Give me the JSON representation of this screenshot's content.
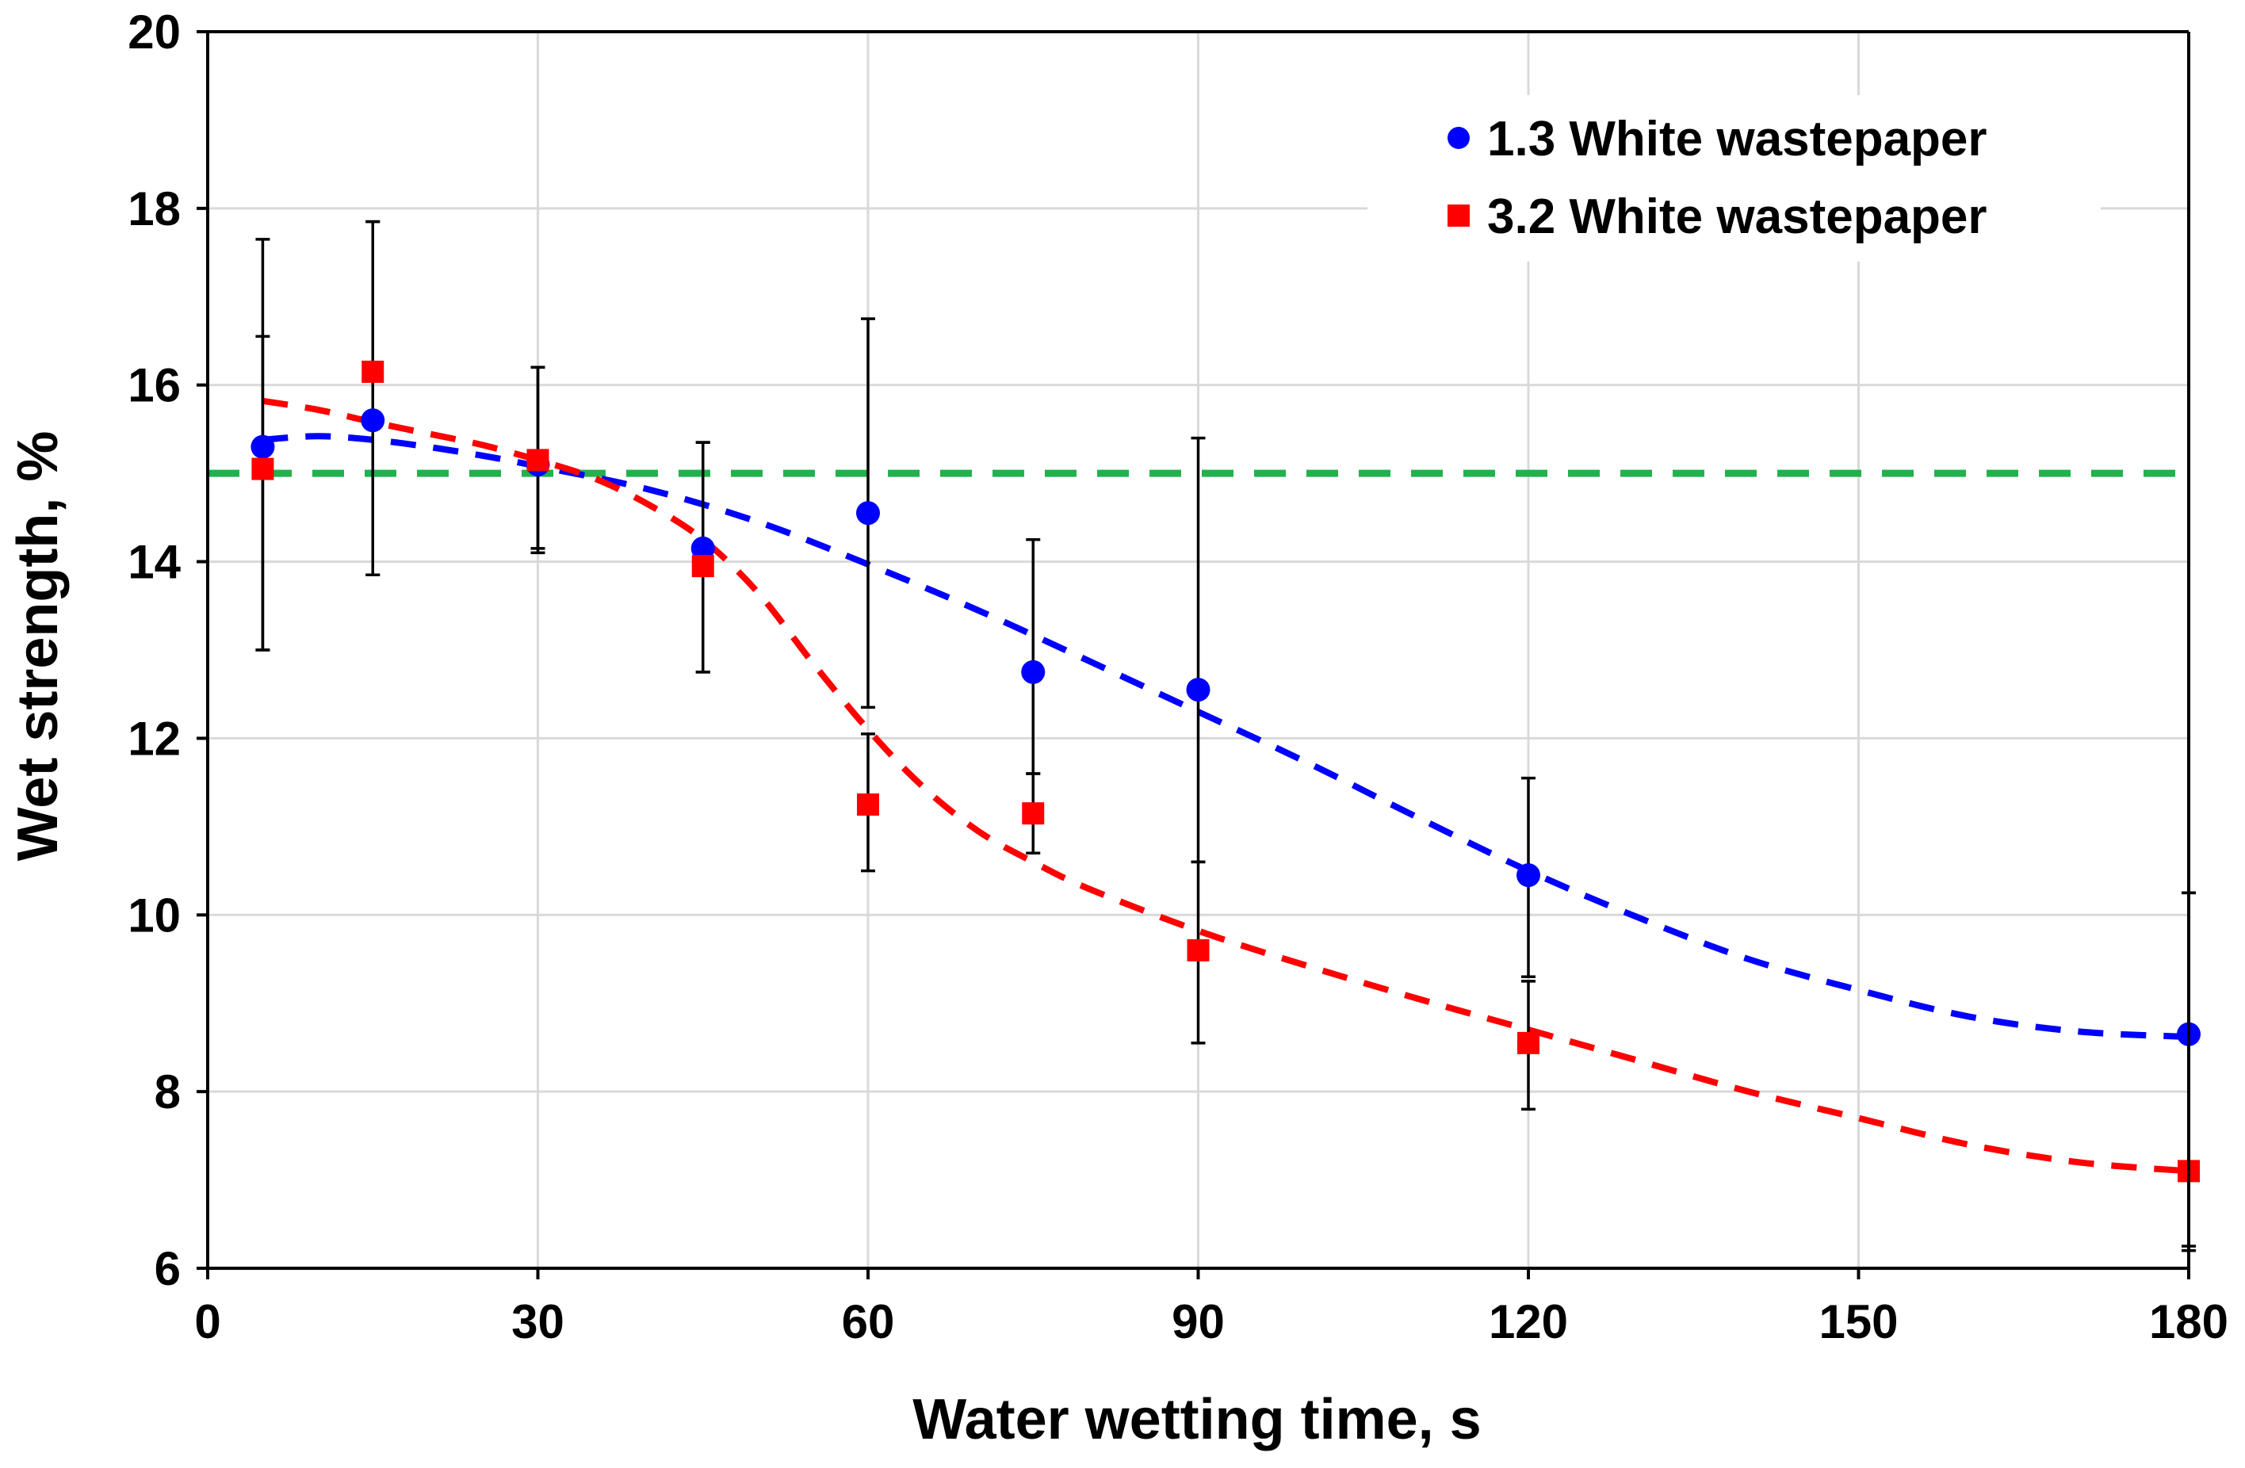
{
  "chart_data": {
    "type": "scatter",
    "title": "",
    "xlabel": "Water wetting time, s",
    "ylabel": "Wet strength, %",
    "xlim": [
      0,
      180
    ],
    "ylim": [
      6,
      20
    ],
    "xticks": [
      0,
      30,
      60,
      90,
      120,
      150,
      180
    ],
    "yticks": [
      6,
      8,
      10,
      12,
      14,
      16,
      18,
      20
    ],
    "xtick_labels": [
      "0",
      "30",
      "60",
      "90",
      "120",
      "150",
      "180"
    ],
    "ytick_labels": [
      "6",
      "8",
      "10",
      "12",
      "14",
      "16",
      "18",
      "20"
    ],
    "grid": true,
    "legend_position": "top-right",
    "reference_line": {
      "y": 15,
      "color": "#22b14c",
      "style": "dashed"
    },
    "series": [
      {
        "name": "1.3 White wastepaper",
        "marker": "circle",
        "color": "#0000ff",
        "x": [
          5,
          15,
          30,
          45,
          60,
          75,
          90,
          120,
          180
        ],
        "y": [
          15.3,
          15.6,
          15.1,
          14.15,
          14.55,
          12.75,
          12.55,
          10.45,
          8.65
        ],
        "err_low": [
          2.3,
          1.75,
          0.95,
          1.4,
          2.2,
          1.15,
          1.95,
          1.15,
          2.4
        ],
        "err_high": [
          2.35,
          2.25,
          1.1,
          1.2,
          2.2,
          1.5,
          2.85,
          1.1,
          1.6
        ],
        "trend": {
          "x": [
            5,
            10,
            15,
            20,
            25,
            30,
            40,
            50,
            60,
            70,
            80,
            90,
            100,
            110,
            120,
            130,
            140,
            150,
            160,
            170,
            180
          ],
          "y": [
            15.38,
            15.42,
            15.38,
            15.3,
            15.2,
            15.08,
            14.82,
            14.45,
            13.97,
            13.45,
            12.88,
            12.3,
            11.72,
            11.1,
            10.5,
            9.97,
            9.5,
            9.15,
            8.85,
            8.68,
            8.62
          ]
        }
      },
      {
        "name": "3.2 White wastepaper",
        "marker": "square",
        "color": "#ff0000",
        "x": [
          5,
          15,
          30,
          45,
          60,
          75,
          90,
          120,
          180
        ],
        "y": [
          15.05,
          16.15,
          15.15,
          13.95,
          11.25,
          11.15,
          9.6,
          8.55,
          7.1
        ],
        "err_low": [
          2.05,
          2.3,
          1.05,
          1.2,
          0.75,
          0.45,
          1.05,
          0.75,
          0.9
        ],
        "err_high": [
          1.5,
          1.7,
          1.05,
          1.4,
          0.8,
          0.45,
          1.0,
          0.7,
          3.15
        ],
        "trend": {
          "x": [
            5,
            10,
            15,
            20,
            25,
            30,
            35,
            40,
            45,
            50,
            55,
            60,
            65,
            70,
            75,
            80,
            90,
            100,
            110,
            120,
            130,
            140,
            150,
            160,
            170,
            180
          ],
          "y": [
            15.82,
            15.72,
            15.58,
            15.45,
            15.32,
            15.15,
            14.95,
            14.65,
            14.25,
            13.65,
            12.85,
            12.1,
            11.45,
            10.95,
            10.6,
            10.3,
            9.82,
            9.42,
            9.05,
            8.7,
            8.35,
            8.0,
            7.7,
            7.4,
            7.2,
            7.1
          ]
        }
      }
    ]
  }
}
